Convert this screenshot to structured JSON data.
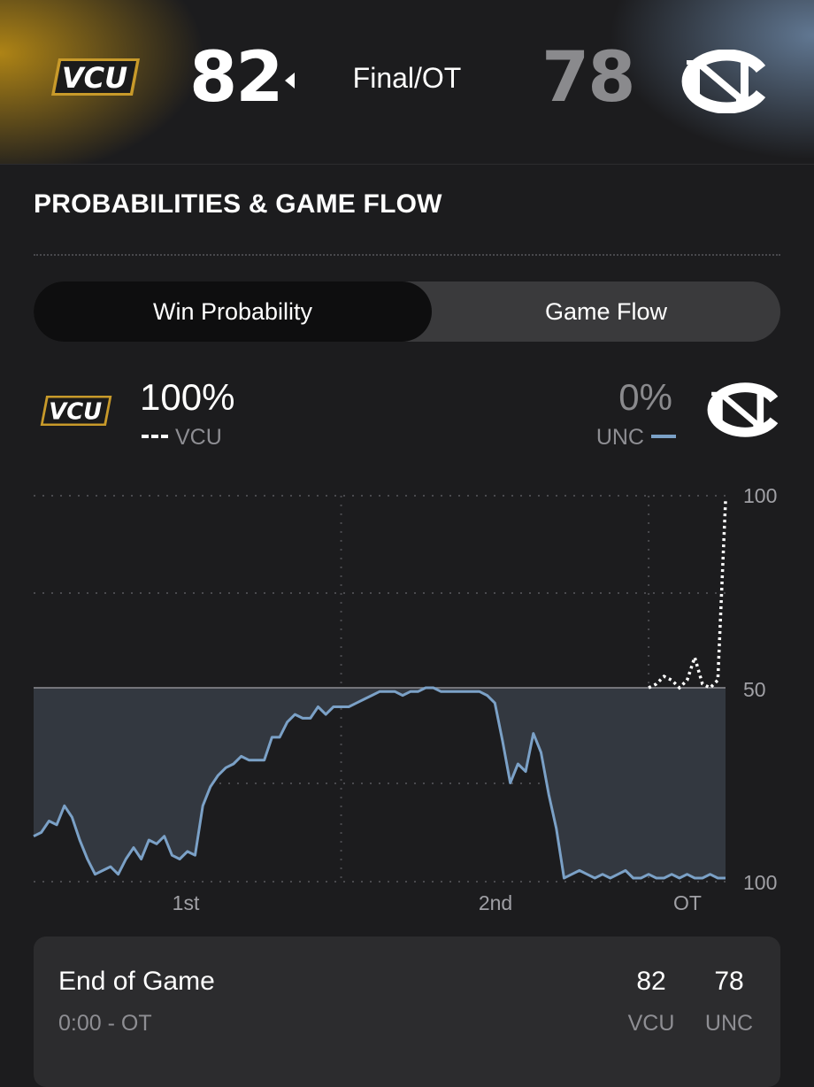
{
  "header": {
    "away_team": "VCU",
    "away_score": "82",
    "home_team": "UNC",
    "home_score": "78",
    "status": "Final/OT",
    "winner_indicator_icon": "caret-left-icon"
  },
  "section": {
    "title": "PROBABILITIES & GAME FLOW"
  },
  "tabs": [
    {
      "label": "Win Probability",
      "active": true
    },
    {
      "label": "Game Flow",
      "active": false
    }
  ],
  "win_probability": {
    "away": {
      "team": "VCU",
      "pct": "100%",
      "legend": "--"
    },
    "home": {
      "team": "UNC",
      "pct": "0%"
    }
  },
  "chart_data": {
    "type": "line",
    "y_ticks": [
      "100",
      "50",
      "100"
    ],
    "x_ticks": [
      "1st",
      "2nd",
      "OT"
    ],
    "ylim": [
      0,
      100
    ],
    "grid": true,
    "colors": {
      "vcu": "#ffffff",
      "unc": "#7ba1c7",
      "fill": "#333840"
    },
    "series": [
      {
        "name": "UNC",
        "style": "solid",
        "x": [
          0,
          0.5,
          1,
          1.5,
          2,
          2.5,
          3,
          3.5,
          4,
          4.5,
          5,
          5.5,
          6,
          6.5,
          7,
          7.5,
          8,
          8.5,
          9,
          9.5,
          10,
          10.5,
          11,
          11.5,
          12,
          12.5,
          13,
          13.5,
          14,
          14.5,
          15,
          15.5,
          16,
          16.5,
          17,
          17.5,
          18,
          18.5,
          19,
          19.5,
          20,
          20.5,
          21,
          21.5,
          22,
          22.5,
          23,
          23.5,
          24,
          24.5,
          25,
          25.5,
          26,
          26.5,
          27,
          27.5,
          28,
          28.5,
          29,
          29.5,
          30,
          30.5,
          31,
          31.5,
          32,
          32.5,
          33,
          33.5,
          34,
          34.5,
          35,
          35.5,
          36,
          36.5,
          37,
          37.5,
          38,
          38.5,
          39,
          39.5,
          40,
          40.5,
          41,
          41.5,
          42,
          42.5,
          43,
          43.5,
          44,
          44.5,
          45
        ],
        "values": [
          89,
          88,
          85,
          86,
          81,
          84,
          90,
          95,
          99,
          98,
          97,
          99,
          95,
          92,
          95,
          90,
          91,
          89,
          94,
          95,
          93,
          94,
          81,
          76,
          73,
          71,
          70,
          68,
          69,
          69,
          69,
          63,
          63,
          59,
          57,
          58,
          58,
          55,
          57,
          55,
          55,
          55,
          54,
          53,
          52,
          51,
          51,
          51,
          52,
          51,
          51,
          50,
          50,
          51,
          51,
          51,
          51,
          51,
          51,
          52,
          54,
          64,
          75,
          70,
          72,
          62,
          67,
          78,
          87,
          100,
          99,
          98,
          99,
          100,
          99,
          100,
          99,
          98,
          100,
          100,
          99,
          100,
          100,
          99,
          100,
          99,
          100,
          100,
          99,
          100,
          100
        ]
      },
      {
        "name": "VCU",
        "style": "dashed",
        "x": [
          40,
          40.5,
          41,
          41.5,
          42,
          42.5,
          43,
          43.5,
          44,
          44.5,
          45
        ],
        "values": [
          100,
          101,
          103,
          102,
          100,
          102,
          108,
          101,
          100,
          102,
          149
        ]
      }
    ]
  },
  "last_play": {
    "title": "End of Game",
    "subtitle": "0:00 - OT",
    "away_score": "82",
    "home_score": "78",
    "away_team": "VCU",
    "home_team": "UNC"
  }
}
